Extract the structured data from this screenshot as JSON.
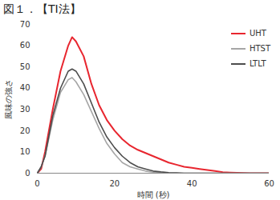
{
  "chart_data": {
    "type": "line",
    "title": "図１．【TI法】",
    "x_label": "時間 (秒)",
    "y_label": "風味の強さ",
    "x": [
      0,
      1,
      2,
      4,
      6,
      8,
      9,
      10,
      12,
      14,
      16,
      18,
      20,
      22,
      24,
      26,
      28,
      30,
      32,
      34,
      36,
      38,
      40,
      42,
      44,
      46,
      48,
      50,
      55,
      60
    ],
    "series": [
      {
        "name": "UHT",
        "color": "#e8262f",
        "values": [
          0,
          2,
          10,
          30,
          48,
          60,
          64,
          62,
          55,
          42,
          32,
          25,
          20,
          16,
          13,
          11,
          9.5,
          8,
          6.5,
          5,
          4,
          3,
          2.5,
          2,
          1.5,
          1,
          0.5,
          0.3,
          0,
          0
        ]
      },
      {
        "name": "HTST",
        "color": "#a6a6a6",
        "values": [
          0,
          3,
          8,
          25,
          38,
          44,
          45,
          43,
          37,
          29,
          21,
          14,
          9,
          5,
          3,
          2,
          1,
          0.5,
          0.2,
          0,
          0,
          0,
          0,
          0,
          0,
          0,
          0,
          0,
          0,
          0
        ]
      },
      {
        "name": "LTLT",
        "color": "#4d4d4d",
        "values": [
          0,
          3,
          8,
          27,
          40,
          48,
          49,
          48,
          42,
          33,
          24,
          17,
          12,
          8,
          5,
          3,
          2,
          1,
          0.6,
          0.3,
          0.2,
          0,
          0,
          0,
          0,
          0,
          0,
          0,
          0,
          0
        ]
      }
    ],
    "xlim": [
      0,
      60
    ],
    "xticks": [
      0,
      20,
      40,
      60
    ],
    "ylim": [
      0,
      70
    ],
    "yticks": [
      0,
      10,
      20,
      30,
      40,
      50,
      60,
      70
    ],
    "grid": false,
    "legend": "right"
  }
}
